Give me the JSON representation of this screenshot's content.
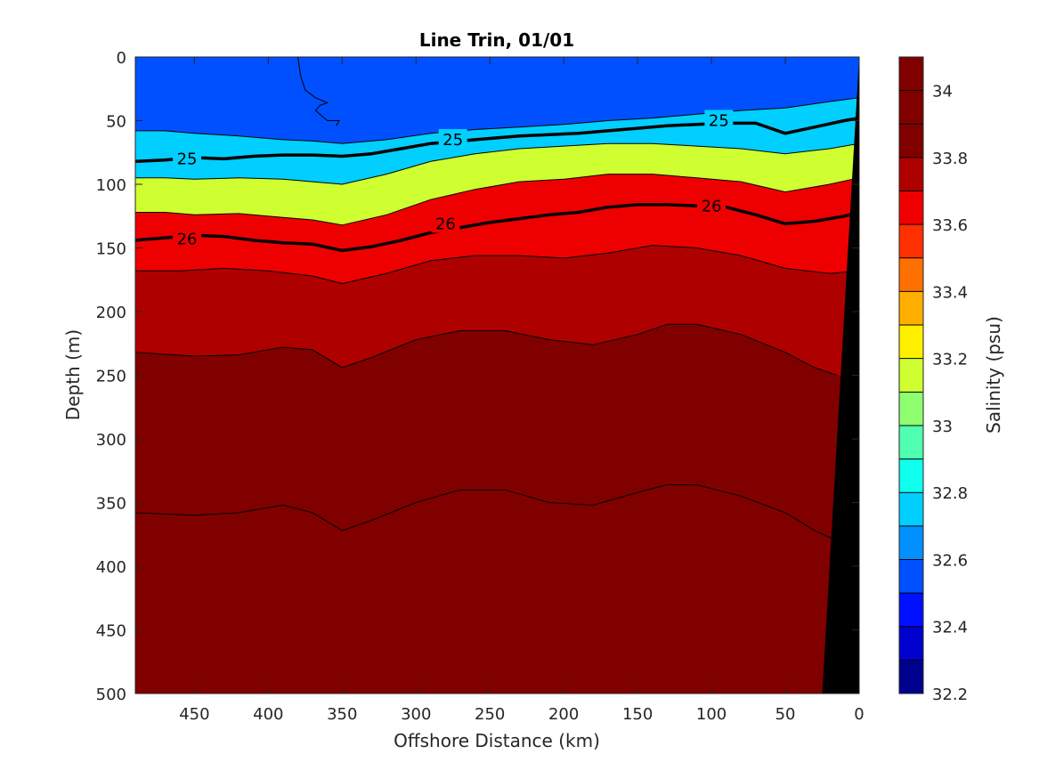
{
  "chart_data": {
    "type": "heatmap",
    "title": "Line Trin, 01/01",
    "xlabel": "Offshore Distance (km)",
    "ylabel": "Depth (m)",
    "xlim": [
      490,
      0
    ],
    "ylim": [
      0,
      500
    ],
    "x_reversed": true,
    "y_reversed": true,
    "x_ticks": [
      "450",
      "400",
      "350",
      "300",
      "250",
      "200",
      "150",
      "100",
      "50",
      "0"
    ],
    "x_tick_values": [
      450,
      400,
      350,
      300,
      250,
      200,
      150,
      100,
      50,
      0
    ],
    "y_ticks": [
      "0",
      "50",
      "100",
      "150",
      "200",
      "250",
      "300",
      "350",
      "400",
      "450",
      "500"
    ],
    "y_tick_values": [
      0,
      50,
      100,
      150,
      200,
      250,
      300,
      350,
      400,
      450,
      500
    ],
    "colorbar": {
      "label": "Salinity (psu)",
      "range": [
        32.2,
        34.1
      ],
      "tick_labels": [
        "34",
        "33.8",
        "33.6",
        "33.4",
        "33.2",
        "33",
        "32.8",
        "32.6",
        "32.4",
        "32.2"
      ],
      "tick_values": [
        34,
        33.8,
        33.6,
        33.4,
        33.2,
        33,
        32.8,
        32.6,
        32.4,
        32.2
      ],
      "levels": [
        32.2,
        32.3,
        32.4,
        32.5,
        32.6,
        32.7,
        32.8,
        32.9,
        33.0,
        33.1,
        33.2,
        33.3,
        33.4,
        33.5,
        33.6,
        33.7,
        33.8,
        33.9,
        34.0,
        34.1
      ],
      "colors": [
        "#00008f",
        "#0000cf",
        "#0010ff",
        "#0050ff",
        "#0090ff",
        "#00cfff",
        "#10ffef",
        "#50ffaf",
        "#90ff6f",
        "#cfff30",
        "#ffef00",
        "#ffaf00",
        "#ff7000",
        "#ff3000",
        "#ef0000",
        "#af0000",
        "#800000"
      ]
    },
    "salinity_isolines": [
      {
        "level": 32.65,
        "x": [
          490,
          470,
          450,
          420,
          390,
          370,
          350,
          320,
          290,
          260,
          230,
          200,
          170,
          140,
          110,
          80,
          50,
          20,
          0
        ],
        "y": [
          58,
          58,
          60,
          62,
          65,
          66,
          68,
          65,
          60,
          57,
          55,
          53,
          50,
          48,
          45,
          42,
          40,
          35,
          32
        ]
      },
      {
        "level": 32.95,
        "x": [
          490,
          470,
          450,
          420,
          390,
          370,
          350,
          320,
          290,
          260,
          230,
          200,
          170,
          140,
          110,
          80,
          50,
          20,
          0
        ],
        "y": [
          95,
          95,
          96,
          95,
          96,
          98,
          100,
          92,
          82,
          76,
          72,
          70,
          68,
          68,
          70,
          72,
          76,
          72,
          68
        ]
      },
      {
        "level": 33.35,
        "x": [
          490,
          470,
          450,
          420,
          390,
          370,
          350,
          320,
          290,
          260,
          230,
          200,
          170,
          140,
          110,
          80,
          50,
          20,
          0
        ],
        "y": [
          122,
          122,
          124,
          123,
          126,
          128,
          132,
          124,
          112,
          104,
          98,
          96,
          92,
          92,
          95,
          98,
          106,
          100,
          95
        ]
      },
      {
        "level": 33.85,
        "x": [
          490,
          460,
          430,
          400,
          370,
          350,
          320,
          290,
          260,
          230,
          200,
          170,
          140,
          110,
          80,
          50,
          20,
          0
        ],
        "y": [
          168,
          168,
          166,
          168,
          172,
          178,
          170,
          160,
          156,
          156,
          158,
          154,
          148,
          150,
          156,
          166,
          170,
          168
        ]
      },
      {
        "level": 33.95,
        "x": [
          490,
          450,
          420,
          390,
          370,
          350,
          330,
          300,
          270,
          240,
          210,
          180,
          150,
          130,
          110,
          80,
          50,
          30,
          15
        ],
        "y": [
          232,
          235,
          234,
          228,
          230,
          244,
          236,
          222,
          215,
          215,
          222,
          226,
          218,
          210,
          210,
          218,
          232,
          244,
          250
        ]
      },
      {
        "level": 34.02,
        "x": [
          490,
          450,
          420,
          390,
          370,
          350,
          330,
          300,
          270,
          240,
          210,
          180,
          150,
          130,
          110,
          80,
          50,
          30,
          15
        ],
        "y": [
          358,
          360,
          358,
          352,
          358,
          372,
          364,
          350,
          340,
          340,
          350,
          352,
          342,
          336,
          336,
          345,
          358,
          372,
          380
        ]
      }
    ],
    "density_contours": [
      {
        "label": "25",
        "x": [
          490,
          470,
          450,
          430,
          410,
          390,
          370,
          350,
          330,
          310,
          290,
          270,
          250,
          230,
          210,
          190,
          170,
          150,
          130,
          110,
          90,
          70,
          50,
          30,
          10,
          0
        ],
        "y": [
          82,
          81,
          79,
          80,
          78,
          77,
          77,
          78,
          76,
          72,
          68,
          66,
          64,
          62,
          61,
          60,
          58,
          56,
          54,
          53,
          52,
          52,
          60,
          55,
          50,
          48
        ],
        "label_positions": [
          [
            455,
            80
          ],
          [
            275,
            65
          ],
          [
            95,
            50
          ]
        ]
      },
      {
        "label": "26",
        "x": [
          490,
          470,
          450,
          430,
          410,
          390,
          370,
          350,
          330,
          310,
          290,
          270,
          250,
          230,
          210,
          190,
          170,
          150,
          130,
          110,
          90,
          70,
          50,
          30,
          10,
          0
        ],
        "y": [
          144,
          142,
          140,
          141,
          144,
          146,
          147,
          152,
          149,
          144,
          138,
          134,
          130,
          127,
          124,
          122,
          118,
          116,
          116,
          117,
          118,
          124,
          131,
          129,
          125,
          122
        ],
        "label_positions": [
          [
            455,
            143
          ],
          [
            280,
            131
          ],
          [
            100,
            117
          ]
        ]
      }
    ],
    "upper_eddy_contour": {
      "x": [
        380,
        378,
        375,
        368,
        360,
        365,
        368,
        360,
        352,
        354
      ],
      "y": [
        0,
        15,
        26,
        32,
        36,
        38,
        42,
        50,
        50,
        54
      ]
    },
    "land_mask": {
      "x": [
        0,
        0,
        25
      ],
      "y": [
        0,
        500,
        500
      ],
      "top_x": 0,
      "bottom_x": 25
    }
  }
}
